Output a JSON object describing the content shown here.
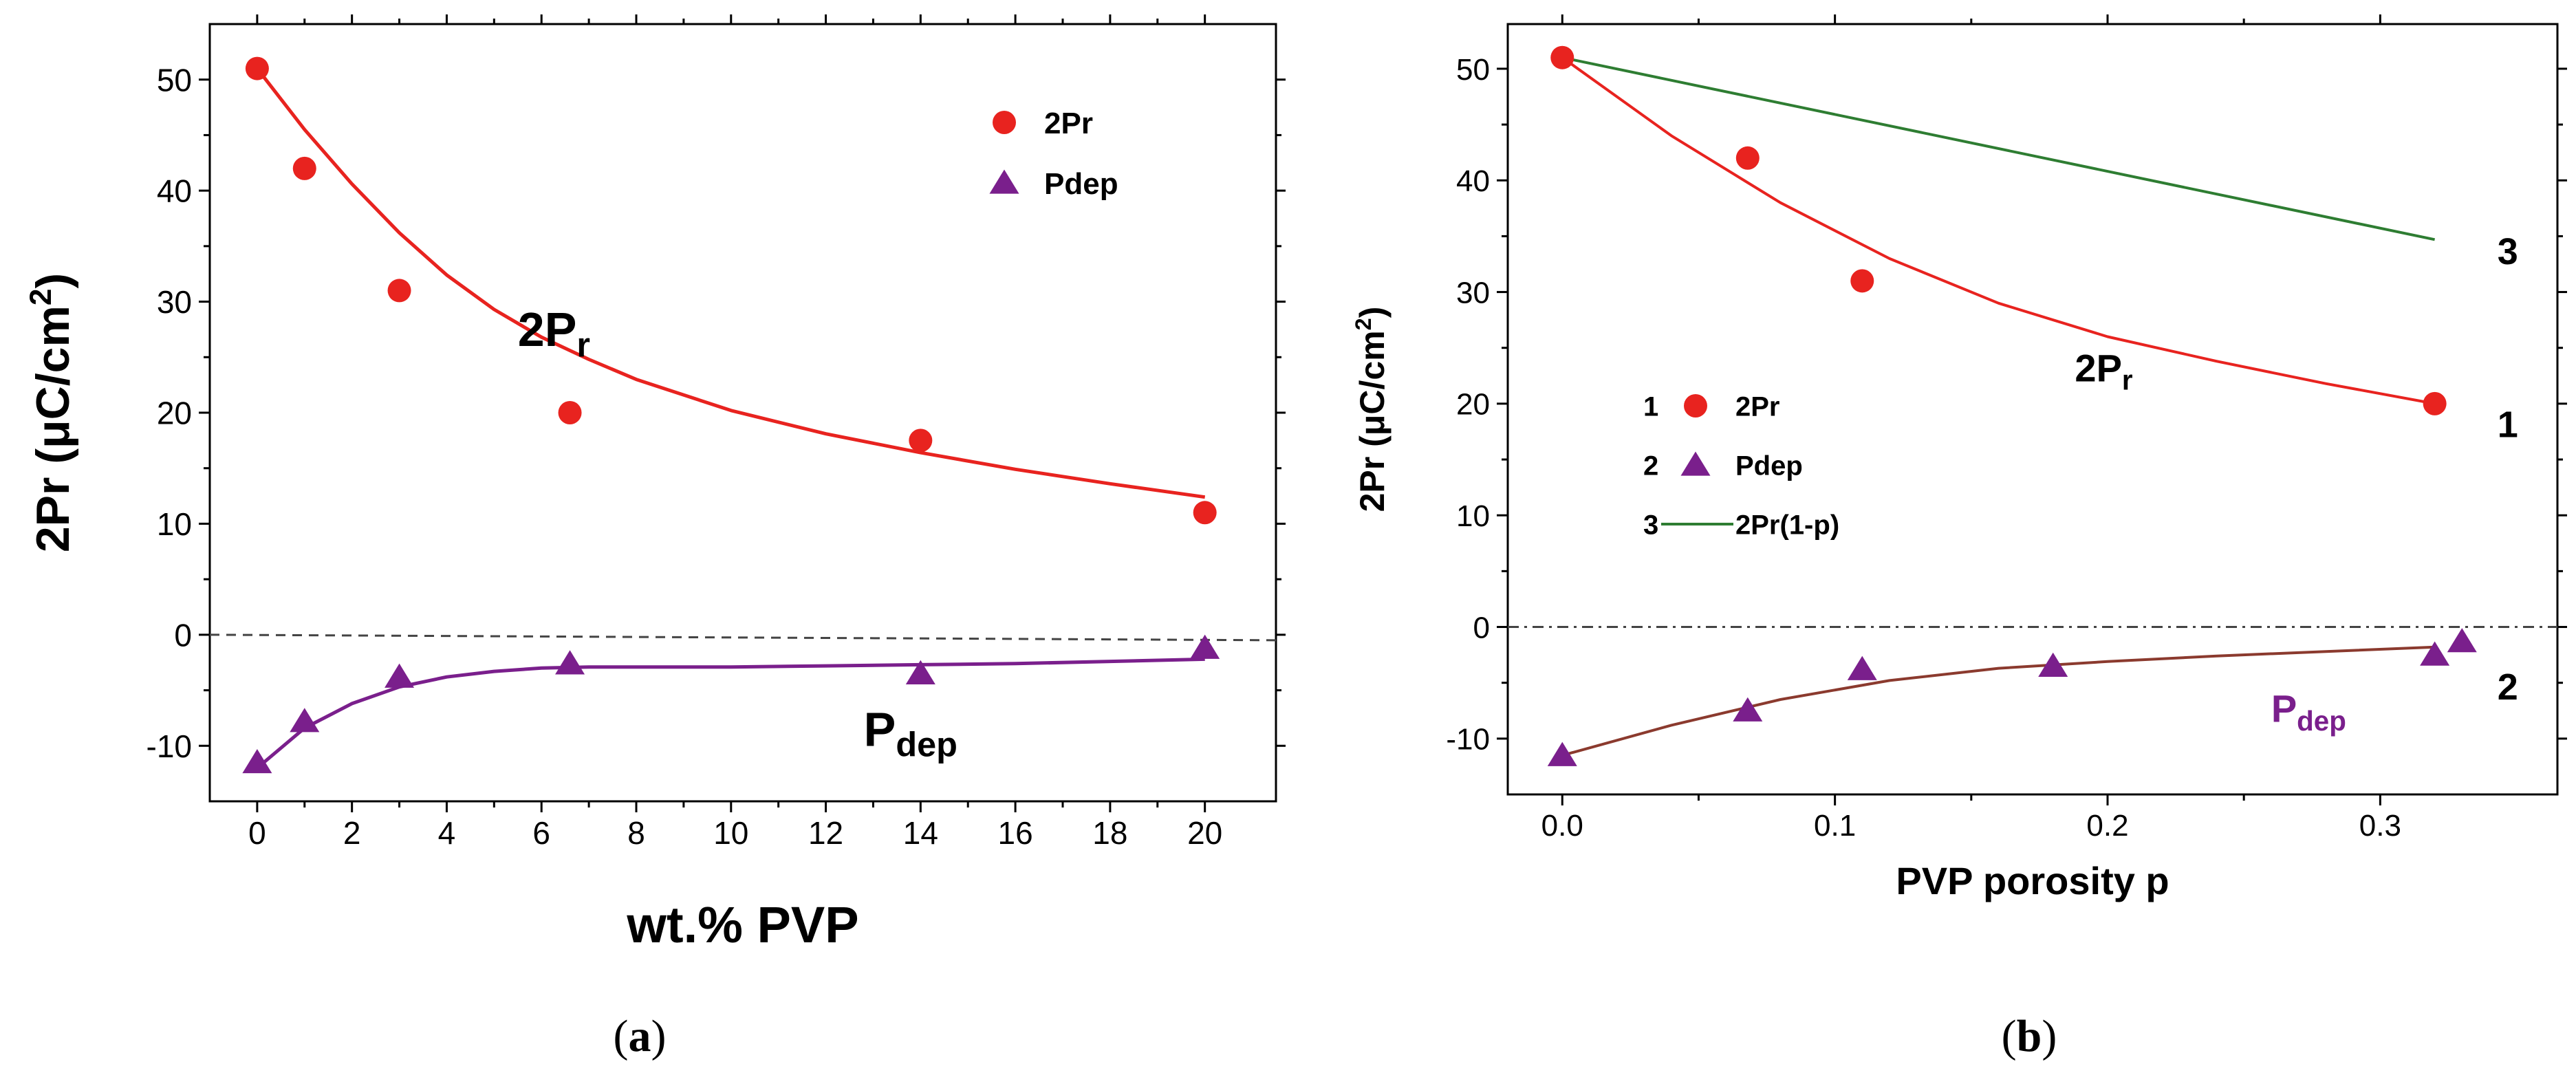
{
  "chart_data": [
    {
      "type": "scatter",
      "panel_label": "(a)",
      "xlabel": "wt.% PVP",
      "ylabel": "2Pr (μC/cm²)",
      "xlim": [
        -1,
        21.5
      ],
      "ylim": [
        -15,
        55
      ],
      "xticks": [
        0,
        2,
        4,
        6,
        8,
        10,
        12,
        14,
        16,
        18,
        20
      ],
      "yticks": [
        -10,
        0,
        10,
        20,
        30,
        40,
        50
      ],
      "zero_line": true,
      "legend": [
        {
          "marker": "circle",
          "color": "#e8231f",
          "label": "2Pr"
        },
        {
          "marker": "triangle",
          "color": "#7a1f8c",
          "label": "Pdep"
        }
      ],
      "annotations": [
        {
          "text": "2Pr",
          "x": 5.5,
          "y": 26,
          "color": "#000000"
        },
        {
          "text": "Pdep",
          "x": 12.8,
          "y": -10,
          "color": "#000000"
        }
      ],
      "series": [
        {
          "name": "2Pr",
          "marker": "circle",
          "color": "#e8231f",
          "x": [
            0,
            1,
            3,
            6.6,
            14,
            20
          ],
          "y": [
            51,
            42,
            31,
            20,
            17.5,
            11
          ]
        },
        {
          "name": "Pdep",
          "marker": "triangle",
          "color": "#7a1f8c",
          "x": [
            0,
            1,
            3,
            6.6,
            14,
            20
          ],
          "y": [
            -11.5,
            -7.8,
            -3.8,
            -2.6,
            -3.5,
            -1.2
          ]
        }
      ],
      "fits": [
        {
          "name": "2Pr fit",
          "color": "#e8231f",
          "x": [
            0,
            1,
            2,
            3,
            4,
            5,
            6,
            7,
            8,
            10,
            12,
            14,
            16,
            18,
            20
          ],
          "y": [
            51,
            45.5,
            40.6,
            36.2,
            32.4,
            29.3,
            26.8,
            24.8,
            23.0,
            20.2,
            18.1,
            16.4,
            14.9,
            13.6,
            12.4
          ]
        },
        {
          "name": "Pdep fit",
          "color": "#7a1f8c",
          "x": [
            0,
            1,
            2,
            3,
            4,
            5,
            6,
            7,
            8,
            10,
            12,
            14,
            16,
            18,
            20
          ],
          "y": [
            -12,
            -8.4,
            -6.2,
            -4.7,
            -3.8,
            -3.3,
            -3.0,
            -2.9,
            -2.9,
            -2.9,
            -2.8,
            -2.7,
            -2.6,
            -2.4,
            -2.2
          ]
        }
      ]
    },
    {
      "type": "scatter",
      "panel_label": "(b)",
      "xlabel": "PVP porosity p",
      "ylabel": "2Pr (μC/cm²)",
      "xlim": [
        -0.02,
        0.365
      ],
      "ylim": [
        -15,
        54
      ],
      "xticks": [
        0.0,
        0.1,
        0.2,
        0.3
      ],
      "xtick_labels": [
        "0.0",
        "0.1",
        "0.2",
        "0.3"
      ],
      "yticks": [
        -10,
        0,
        10,
        20,
        30,
        40,
        50
      ],
      "zero_line": true,
      "legend": [
        {
          "num": "1",
          "marker": "circle",
          "color": "#e8231f",
          "label": "2Pr"
        },
        {
          "num": "2",
          "marker": "triangle",
          "color": "#7a1f8c",
          "label": "Pdep"
        },
        {
          "num": "3",
          "marker": "line",
          "color": "#2e7d32",
          "label": "2Pr(1-p)"
        }
      ],
      "annotations": [
        {
          "text": "2Pr",
          "x": 0.188,
          "y": 22,
          "color": "#000000"
        },
        {
          "text": "Pdep",
          "x": 0.26,
          "y": -8.5,
          "color": "#7a1f8c"
        },
        {
          "text": "1",
          "x": 0.343,
          "y": 17,
          "color": "#000000"
        },
        {
          "text": "2",
          "x": 0.343,
          "y": -6.5,
          "color": "#000000"
        },
        {
          "text": "3",
          "x": 0.343,
          "y": 32.5,
          "color": "#000000"
        }
      ],
      "series": [
        {
          "name": "2Pr",
          "marker": "circle",
          "color": "#e8231f",
          "x": [
            0.0,
            0.068,
            0.11,
            0.32
          ],
          "y": [
            51,
            42,
            31,
            20
          ]
        },
        {
          "name": "Pdep",
          "marker": "triangle",
          "color": "#7a1f8c",
          "x": [
            0.0,
            0.068,
            0.11,
            0.18,
            0.32,
            0.33
          ],
          "y": [
            -11.5,
            -7.5,
            -3.8,
            -3.5,
            -2.5,
            -1.3
          ]
        }
      ],
      "fits": [
        {
          "name": "2Pr fit",
          "color": "#e8231f",
          "x": [
            0,
            0.04,
            0.08,
            0.12,
            0.16,
            0.2,
            0.24,
            0.28,
            0.32
          ],
          "y": [
            51,
            44.0,
            38.0,
            33.0,
            29.0,
            26.0,
            23.8,
            21.8,
            20
          ]
        },
        {
          "name": "Pdep fit",
          "color": "#8b3a2e",
          "x": [
            0,
            0.04,
            0.08,
            0.12,
            0.16,
            0.2,
            0.24,
            0.28,
            0.32
          ],
          "y": [
            -11.5,
            -8.8,
            -6.5,
            -4.8,
            -3.7,
            -3.1,
            -2.6,
            -2.2,
            -1.8
          ]
        },
        {
          "name": "2Pr(1-p)",
          "color": "#2e7d32",
          "x": [
            0,
            0.32
          ],
          "y": [
            51,
            34.7
          ]
        }
      ]
    }
  ]
}
